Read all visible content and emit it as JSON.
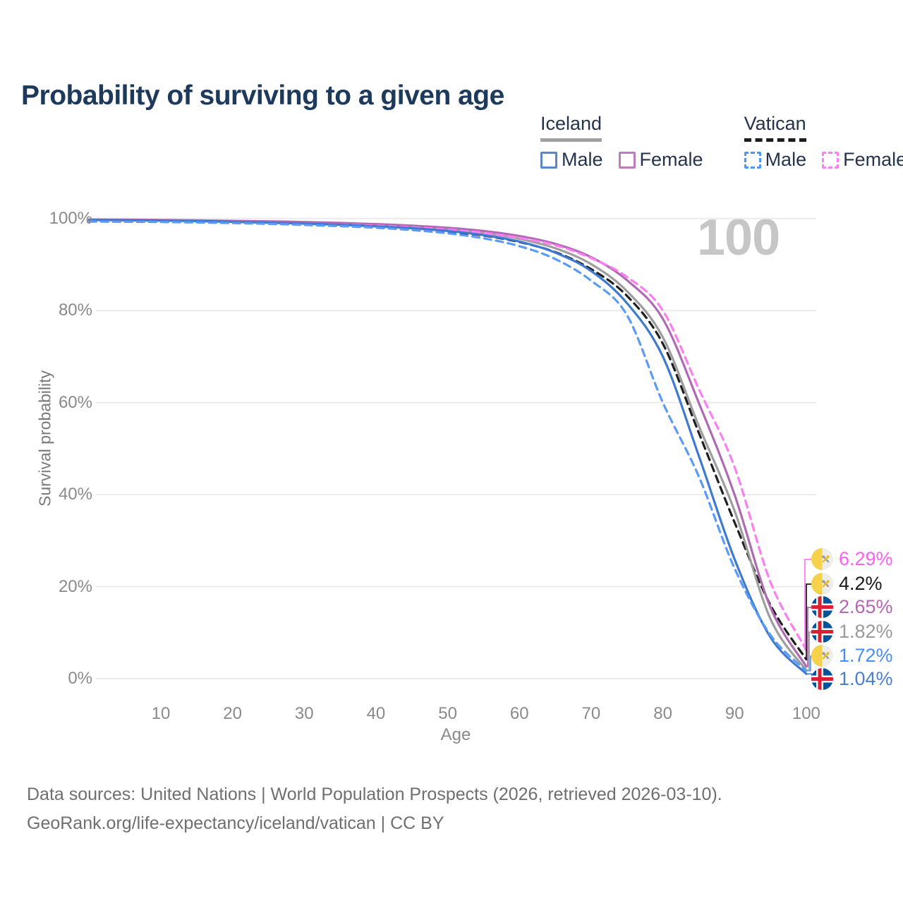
{
  "title": "Probability of surviving to a given age",
  "watermark": "100",
  "legend": {
    "groups": [
      {
        "name": "Iceland",
        "line_style": "solid",
        "line_color": "#a0a0a0",
        "items": [
          {
            "label": "Male",
            "color": "#5b87c9",
            "dashed": false
          },
          {
            "label": "Female",
            "color": "#bd7cba",
            "dashed": false
          }
        ]
      },
      {
        "name": "Vatican",
        "line_style": "dashed",
        "line_color": "#1c1c1c",
        "items": [
          {
            "label": "Male",
            "color": "#4d94ff",
            "dashed": true
          },
          {
            "label": "Female",
            "color": "#ff80f0",
            "dashed": true
          }
        ]
      }
    ]
  },
  "chart_data": {
    "type": "line",
    "title": "Probability of surviving to a given age",
    "xlabel": "Age",
    "ylabel": "Survival probability",
    "xlim": [
      0,
      100
    ],
    "ylim": [
      0,
      100
    ],
    "grid": "horizontal-only",
    "legend_position": "top-right",
    "x_ticks": [
      10,
      20,
      30,
      40,
      50,
      60,
      70,
      80,
      90,
      100
    ],
    "y_tick_labels": [
      "0%",
      "20%",
      "40%",
      "60%",
      "80%",
      "100%"
    ],
    "y_tick_values": [
      0,
      20,
      40,
      60,
      80,
      100
    ],
    "ages": [
      0,
      5,
      10,
      15,
      20,
      25,
      30,
      35,
      40,
      45,
      50,
      55,
      60,
      65,
      70,
      75,
      80,
      85,
      90,
      95,
      100
    ],
    "series": [
      {
        "name": "Vatican Female",
        "country": "Vatican",
        "sex": "Female",
        "style": "dashed",
        "color": "#ff7df2",
        "label_color": "#ff5ff0",
        "flag": "vatican",
        "end_label": "6.29%",
        "end_value": 6.29,
        "values": [
          99.45,
          99.4,
          99.35,
          99.28,
          99.18,
          99.05,
          98.9,
          98.7,
          98.45,
          98.1,
          97.6,
          96.9,
          95.8,
          94.2,
          91.4,
          87.3,
          80.0,
          63.0,
          46.0,
          21.0,
          6.29
        ]
      },
      {
        "name": "Vatican Total",
        "country": "Vatican",
        "sex": "Both sexes",
        "style": "dashed",
        "color": "#1f1f1f",
        "label_color": "#1a1a1a",
        "flag": "vatican",
        "end_label": "4.2%",
        "end_value": 4.2,
        "values": [
          99.4,
          99.35,
          99.3,
          99.22,
          99.1,
          98.95,
          98.75,
          98.52,
          98.22,
          97.8,
          97.2,
          96.3,
          94.9,
          92.7,
          89.0,
          83.2,
          72.8,
          53.5,
          34.0,
          16.0,
          4.2
        ]
      },
      {
        "name": "Iceland Female",
        "country": "Iceland",
        "sex": "Female",
        "style": "solid",
        "color": "#b06ab3",
        "label_color": "#b565b5",
        "flag": "iceland",
        "end_label": "2.65%",
        "end_value": 2.65,
        "values": [
          99.8,
          99.75,
          99.7,
          99.6,
          99.5,
          99.4,
          99.25,
          99.05,
          98.8,
          98.45,
          98.0,
          97.3,
          96.2,
          94.5,
          91.6,
          86.6,
          78.2,
          60.0,
          40.0,
          15.5,
          2.65
        ]
      },
      {
        "name": "Iceland Total",
        "country": "Iceland",
        "sex": "Both sexes",
        "style": "solid",
        "color": "#9e9e9e",
        "label_color": "#9a9a9a",
        "flag": "iceland",
        "end_label": "1.82%",
        "end_value": 1.82,
        "values": [
          99.75,
          99.68,
          99.62,
          99.52,
          99.4,
          99.25,
          99.07,
          98.85,
          98.55,
          98.17,
          97.65,
          96.85,
          95.6,
          93.55,
          90.1,
          84.2,
          74.2,
          55.0,
          36.5,
          13.0,
          1.82
        ]
      },
      {
        "name": "Vatican Male",
        "country": "Vatican",
        "sex": "Male",
        "style": "dashed",
        "color": "#5b9bf8",
        "label_color": "#4a8cf7",
        "flag": "vatican",
        "end_label": "1.72%",
        "end_value": 1.72,
        "values": [
          99.35,
          99.3,
          99.25,
          99.15,
          99.0,
          98.85,
          98.6,
          98.35,
          98.0,
          97.5,
          96.8,
          95.7,
          94.0,
          91.2,
          86.5,
          79.0,
          60.0,
          44.0,
          24.0,
          9.5,
          1.72
        ]
      },
      {
        "name": "Iceland Male",
        "country": "Iceland",
        "sex": "Male",
        "style": "solid",
        "color": "#3f7ad1",
        "label_color": "#4a7fd0",
        "flag": "iceland",
        "end_label": "1.04%",
        "end_value": 1.04,
        "values": [
          99.7,
          99.62,
          99.55,
          99.45,
          99.3,
          99.1,
          98.9,
          98.65,
          98.3,
          97.9,
          97.3,
          96.4,
          95.0,
          92.6,
          88.6,
          81.6,
          70.0,
          48.5,
          26.0,
          9.0,
          1.04
        ]
      }
    ]
  },
  "footer": {
    "line1": "Data sources: United Nations | World Population Prospects (2026, retrieved 2026-03-10).",
    "line2": "GeoRank.org/life-expectancy/iceland/vatican | CC BY"
  }
}
